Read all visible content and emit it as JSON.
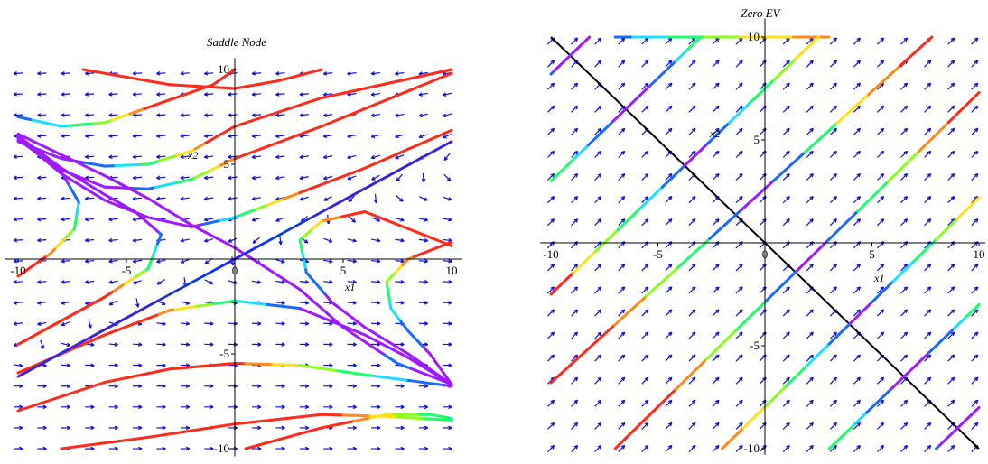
{
  "chart_data": [
    {
      "type": "phase-portrait",
      "title": "Saddle Node",
      "xlabel": "x1",
      "ylabel": "x2",
      "xlim": [
        -10,
        10
      ],
      "ylim": [
        -10,
        10
      ],
      "xticks": [
        -10,
        -5,
        0,
        5,
        10
      ],
      "yticks": [
        -10,
        -5,
        5,
        10
      ],
      "xtick_labels": [
        "-10",
        "-5",
        "0",
        "5",
        "10"
      ],
      "ytick_labels": [
        "-10",
        "-5",
        "5",
        "10"
      ],
      "field_color": "#1010e0",
      "colormap": "rainbow",
      "trajectories": [
        {
          "points": [
            [
              -10,
              7.5
            ],
            [
              -8,
              7.0
            ],
            [
              -6,
              7.2
            ],
            [
              -4,
              8.0
            ],
            [
              -1,
              9.2
            ],
            [
              0,
              10
            ]
          ]
        },
        {
          "points": [
            [
              -7,
              10
            ],
            [
              -3,
              9.2
            ],
            [
              0,
              9.0
            ],
            [
              2,
              9.4
            ],
            [
              4,
              10
            ]
          ]
        },
        {
          "points": [
            [
              -10,
              6.2
            ],
            [
              -8,
              5.3
            ],
            [
              -6,
              4.9
            ],
            [
              -4,
              5.0
            ],
            [
              -2,
              5.7
            ],
            [
              0,
              7
            ],
            [
              4,
              8.5
            ],
            [
              10,
              10
            ]
          ]
        },
        {
          "points": [
            [
              -10,
              6.3
            ],
            [
              -8,
              4.7
            ],
            [
              -6,
              3.8
            ],
            [
              -4,
              3.7
            ],
            [
              -2,
              4.2
            ],
            [
              0,
              5.3
            ],
            [
              4,
              7.0
            ],
            [
              10,
              9.8
            ]
          ]
        },
        {
          "points": [
            [
              -10,
              6.4
            ],
            [
              -8,
              4.5
            ],
            [
              -6,
              3.1
            ],
            [
              -4,
              2.2
            ],
            [
              -2,
              1.7
            ],
            [
              0,
              2.2
            ],
            [
              3,
              3.5
            ],
            [
              6,
              4.8
            ],
            [
              10,
              6.8
            ]
          ]
        },
        {
          "points": [
            [
              -10,
              6.5
            ],
            [
              -8,
              4.6
            ],
            [
              -7.2,
              3.0
            ],
            [
              -7.4,
              1.6
            ],
            [
              -8.5,
              0.3
            ],
            [
              -10,
              -0.9
            ]
          ]
        },
        {
          "points": [
            [
              -10,
              6.5
            ],
            [
              -8,
              4.8
            ],
            [
              -6,
              3.4
            ],
            [
              -4.6,
              2.5
            ],
            [
              -3.4,
              1.3
            ],
            [
              -4,
              -0.5
            ],
            [
              -6,
              -2.0
            ],
            [
              -10,
              -4.5
            ]
          ]
        },
        {
          "points": [
            [
              -10,
              6.6
            ],
            [
              -6,
              4.4
            ],
            [
              -4,
              3.2
            ],
            [
              -2,
              1.8
            ],
            [
              0,
              0.6
            ],
            [
              3,
              -1.6
            ],
            [
              5,
              -3.6
            ],
            [
              7.5,
              -5.5
            ],
            [
              10,
              -6.6
            ]
          ]
        },
        {
          "points": [
            [
              -10,
              -6.2
            ],
            [
              -5,
              -3.1
            ],
            [
              0,
              0
            ],
            [
              5,
              3.1
            ],
            [
              10,
              6.2
            ]
          ]
        },
        {
          "points": [
            [
              0.5,
              -10
            ],
            [
              4,
              -8.9
            ],
            [
              7,
              -8.2
            ],
            [
              9,
              -8.2
            ],
            [
              10,
              -8.4
            ]
          ]
        },
        {
          "points": [
            [
              -8,
              -10
            ],
            [
              -4,
              -9.4
            ],
            [
              0,
              -8.7
            ],
            [
              4,
              -8.2
            ],
            [
              7,
              -8.3
            ],
            [
              10,
              -8.5
            ]
          ]
        },
        {
          "points": [
            [
              -10,
              -8.0
            ],
            [
              -6,
              -6.5
            ],
            [
              -3,
              -5.8
            ],
            [
              0,
              -5.5
            ],
            [
              3,
              -5.6
            ],
            [
              6,
              -6.1
            ],
            [
              10,
              -6.7
            ]
          ]
        },
        {
          "points": [
            [
              -10,
              -6.0
            ],
            [
              -6,
              -4.0
            ],
            [
              -3,
              -2.7
            ],
            [
              0,
              -2.2
            ],
            [
              3,
              -2.6
            ],
            [
              6,
              -4.0
            ],
            [
              8,
              -5.2
            ],
            [
              10,
              -6.6
            ]
          ]
        },
        {
          "points": [
            [
              10,
              0.7
            ],
            [
              6,
              2.5
            ],
            [
              4,
              2.0
            ],
            [
              3,
              1.0
            ],
            [
              3.3,
              -0.7
            ],
            [
              4.5,
              -2.3
            ],
            [
              6,
              -3.6
            ],
            [
              8,
              -5.0
            ],
            [
              10,
              -6.6
            ]
          ]
        },
        {
          "points": [
            [
              10,
              0.9
            ],
            [
              8,
              0.0
            ],
            [
              7,
              -1.2
            ],
            [
              7.2,
              -2.6
            ],
            [
              8,
              -3.8
            ],
            [
              9,
              -5.0
            ],
            [
              10,
              -6.6
            ]
          ]
        }
      ]
    },
    {
      "type": "phase-portrait",
      "title": "Zero EV",
      "xlabel": "x1",
      "ylabel": "x2",
      "xlim": [
        -10,
        10
      ],
      "ylim": [
        -10,
        10
      ],
      "xticks": [
        -10,
        -5,
        0,
        5,
        10
      ],
      "yticks": [
        -10,
        -5,
        5,
        10
      ],
      "xtick_labels": [
        "-10",
        "-5",
        "0",
        "5",
        "10"
      ],
      "ytick_labels": [
        "-10",
        "-5",
        "5",
        "10"
      ],
      "field_color": "#1010e0",
      "colormap": "rainbow",
      "equilibrium_line": {
        "points": [
          [
            -10,
            10
          ],
          [
            10,
            -10
          ]
        ],
        "color": "#000000"
      },
      "trajectories": [
        {
          "points": [
            [
              -10,
              8.2
            ],
            [
              -8.2,
              10
            ]
          ]
        },
        {
          "points": [
            [
              -10,
              3.0
            ],
            [
              -3,
              10
            ]
          ]
        },
        {
          "points": [
            [
              -7,
              10
            ],
            [
              3,
              10
            ]
          ]
        },
        {
          "points": [
            [
              -10,
              -2.5
            ],
            [
              2.5,
              10
            ]
          ]
        },
        {
          "points": [
            [
              -10,
              -6.8
            ],
            [
              7.8,
              10
            ]
          ]
        },
        {
          "points": [
            [
              -7,
              -10
            ],
            [
              10,
              7.3
            ]
          ]
        },
        {
          "points": [
            [
              -2,
              -10
            ],
            [
              10,
              2.2
            ]
          ]
        },
        {
          "points": [
            [
              3,
              -10
            ],
            [
              10,
              -3.0
            ]
          ]
        },
        {
          "points": [
            [
              8,
              -10
            ],
            [
              10,
              -8.0
            ]
          ]
        }
      ]
    }
  ]
}
